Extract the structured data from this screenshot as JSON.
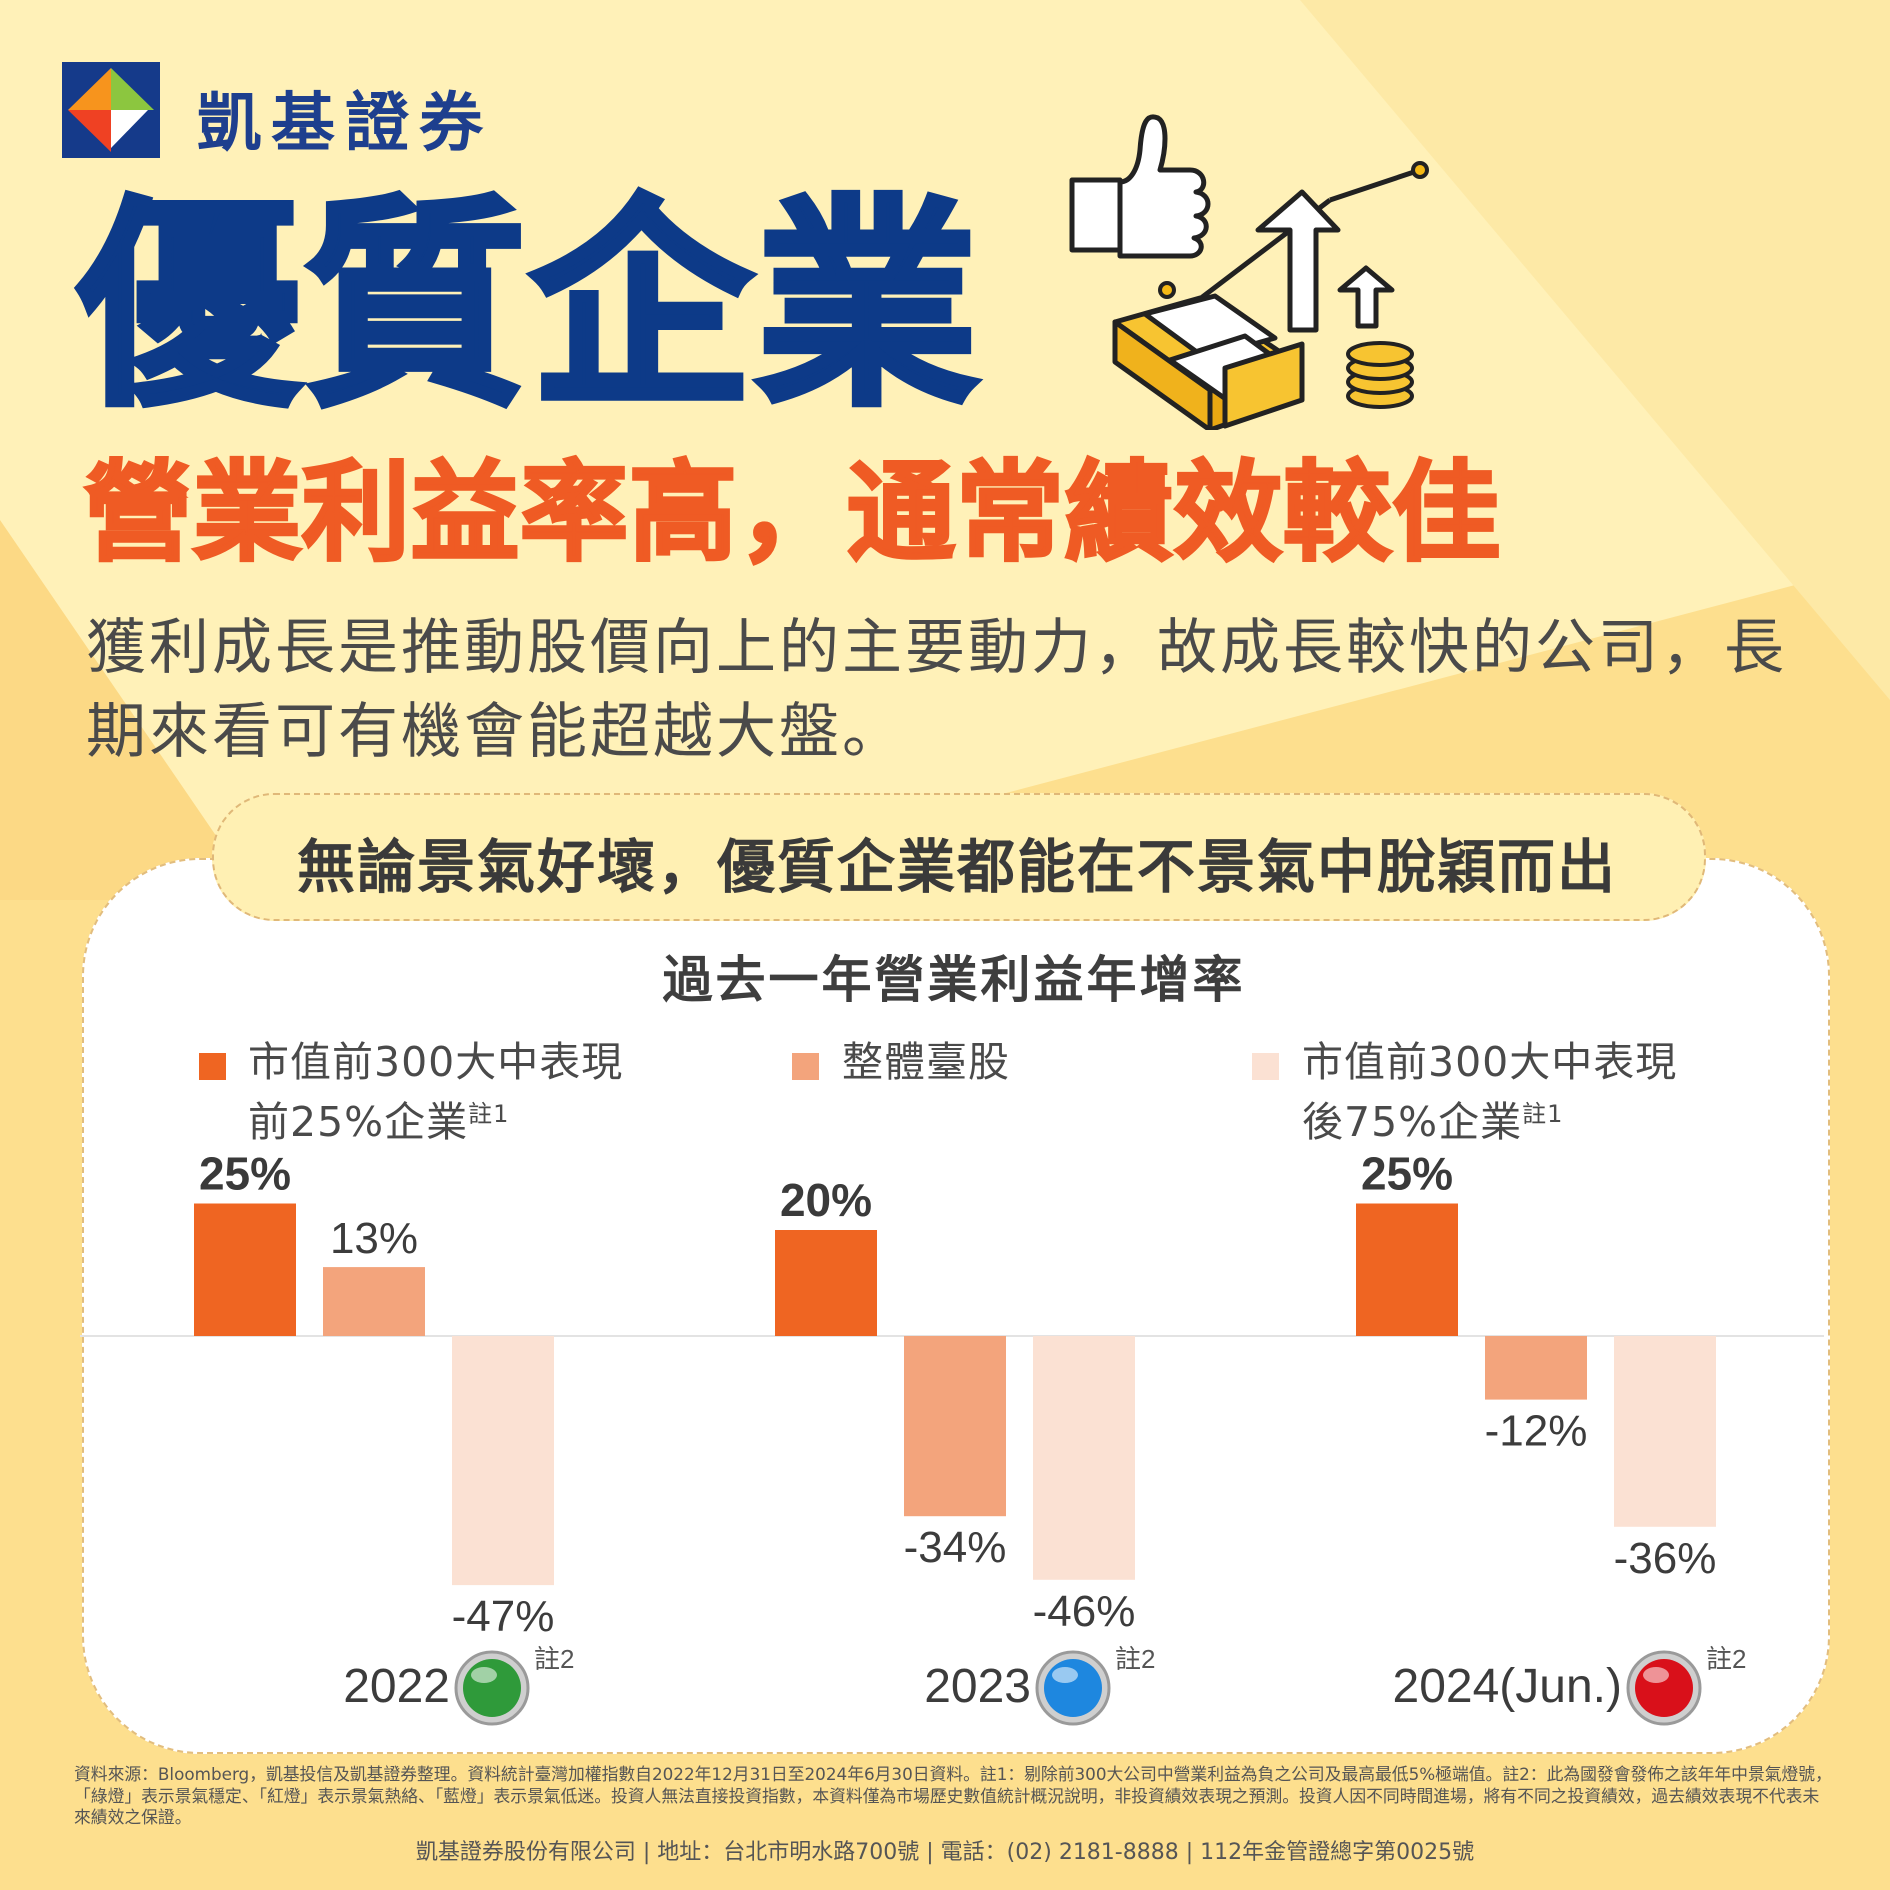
{
  "brand": {
    "name": "凱基證券"
  },
  "headline": "優質企業",
  "subheadline": "營業利益率高，通常績效較佳",
  "description": "獲利成長是推動股價向上的主要動力，故成長較快的公司，長期來看可有機會能超越大盤。",
  "banner": "無論景氣好壞，優質企業都能在不景氣中脫穎而出",
  "colors": {
    "brand_blue": "#0d3a88",
    "accent_orange": "#ef5b24",
    "series1": "#ef6522",
    "series2": "#f3a47c",
    "series3": "#fbe1d3",
    "light_green": "#2f9a3a",
    "light_blue": "#1e87df",
    "light_red": "#d9101a"
  },
  "chart_data": {
    "type": "bar",
    "title": "過去一年營業利益年增率",
    "categories": [
      "2022",
      "2023",
      "2024(Jun.)"
    ],
    "series": [
      {
        "name": "市值前300大中表現前25%企業",
        "note": "註1",
        "values": [
          25,
          20,
          25
        ]
      },
      {
        "name": "整體臺股",
        "values": [
          13,
          -34,
          -12
        ]
      },
      {
        "name": "市值前300大中表現後75%企業",
        "note": "註1",
        "values": [
          -47,
          -46,
          -36
        ]
      }
    ],
    "data_labels": [
      [
        "25%",
        "13%",
        "-47%"
      ],
      [
        "20%",
        "-34%",
        "-46%"
      ],
      [
        "25%",
        "-12%",
        "-36%"
      ]
    ],
    "category_notes": [
      "註2",
      "註2",
      "註2"
    ],
    "signal_lights": [
      "green-light",
      "blue-light",
      "red-light"
    ],
    "ylim": [
      -50,
      30
    ],
    "grid": false,
    "legend_position": "top"
  },
  "footer": {
    "source_note": "資料來源：Bloomberg，凱基投信及凱基證券整理。資料統計臺灣加權指數自2022年12月31日至2024年6月30日資料。註1：剔除前300大公司中營業利益為負之公司及最高最低5%極端值。註2：此為國發會發佈之該年年中景氣燈號，「綠燈」表示景氣穩定、「紅燈」表示景氣熱絡、「藍燈」表示景氣低迷。投資人無法直接投資指數，本資料僅為市場歷史數值統計概況說明，非投資績效表現之預測。投資人因不同時間進場，將有不同之投資績效，過去績效表現不代表未來績效之保證。",
    "company_line": "凱基證券股份有限公司 | 地址：台北市明水路700號 | 電話：(02) 2181-8888 | 112年金管證總字第0025號"
  }
}
